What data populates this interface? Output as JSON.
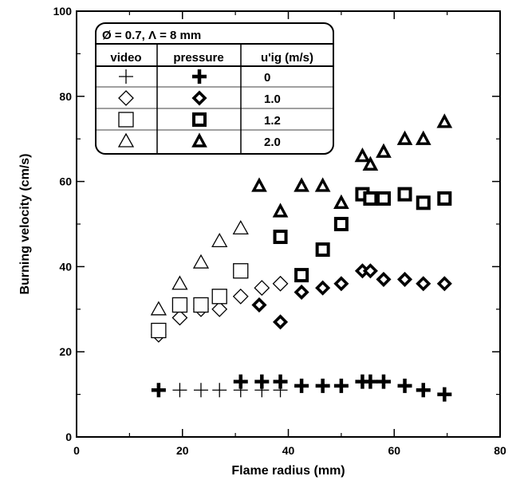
{
  "chart_data": {
    "type": "scatter",
    "xlabel": "Flame radius (mm)",
    "ylabel": "Burning velocity (cm/s)",
    "xlim": [
      0,
      80
    ],
    "ylim": [
      0,
      100
    ],
    "xticks": [
      "0",
      "20",
      "40",
      "60",
      "80"
    ],
    "yticks": [
      "0",
      "20",
      "40",
      "60",
      "80",
      "100"
    ],
    "grid": false,
    "legend": {
      "placement": "top-left",
      "title": "Ø = 0.7, Λ = 8 mm",
      "headers": [
        "video",
        "pressure",
        "u'ig (m/s)"
      ],
      "rows": [
        "0",
        "1.0",
        "1.2",
        "2.0"
      ]
    },
    "series": [
      {
        "group": "video",
        "marker": "plus-thin",
        "u_ig": "0",
        "points": [
          [
            19.5,
            11
          ],
          [
            23.5,
            11
          ],
          [
            27,
            11
          ],
          [
            31,
            11
          ],
          [
            35,
            11
          ],
          [
            38.5,
            11
          ]
        ]
      },
      {
        "group": "pressure",
        "marker": "plus-bold",
        "u_ig": "0",
        "points": [
          [
            15.5,
            11
          ],
          [
            31,
            13
          ],
          [
            35,
            13
          ],
          [
            38.5,
            13
          ],
          [
            42.5,
            12
          ],
          [
            46.5,
            12
          ],
          [
            50,
            12
          ],
          [
            54,
            13
          ],
          [
            55.5,
            13
          ],
          [
            58,
            13
          ],
          [
            62,
            12
          ],
          [
            65.5,
            11
          ],
          [
            69.5,
            10
          ]
        ]
      },
      {
        "group": "video",
        "marker": "diamond-thin",
        "u_ig": "1.0",
        "points": [
          [
            15.5,
            24
          ],
          [
            19.5,
            28
          ],
          [
            23.5,
            30
          ],
          [
            27,
            30
          ],
          [
            31,
            33
          ],
          [
            35,
            35
          ],
          [
            38.5,
            36
          ]
        ]
      },
      {
        "group": "pressure",
        "marker": "diamond-bold",
        "u_ig": "1.0",
        "points": [
          [
            34.5,
            31
          ],
          [
            38.5,
            27
          ],
          [
            42.5,
            34
          ],
          [
            46.5,
            35
          ],
          [
            50,
            36
          ],
          [
            54,
            39
          ],
          [
            55.5,
            39
          ],
          [
            58,
            37
          ],
          [
            62,
            37
          ],
          [
            65.5,
            36
          ],
          [
            69.5,
            36
          ]
        ]
      },
      {
        "group": "video",
        "marker": "square-thin",
        "u_ig": "1.2",
        "points": [
          [
            15.5,
            25
          ],
          [
            19.5,
            31
          ],
          [
            23.5,
            31
          ],
          [
            27,
            33
          ],
          [
            31,
            39
          ]
        ]
      },
      {
        "group": "pressure",
        "marker": "square-bold",
        "u_ig": "1.2",
        "points": [
          [
            38.5,
            47
          ],
          [
            42.5,
            38
          ],
          [
            46.5,
            44
          ],
          [
            50,
            50
          ],
          [
            54,
            57
          ],
          [
            55.5,
            56
          ],
          [
            58,
            56
          ],
          [
            62,
            57
          ],
          [
            65.5,
            55
          ],
          [
            69.5,
            56
          ]
        ]
      },
      {
        "group": "video",
        "marker": "triangle-thin",
        "u_ig": "2.0",
        "points": [
          [
            15.5,
            30
          ],
          [
            19.5,
            36
          ],
          [
            23.5,
            41
          ],
          [
            27,
            46
          ],
          [
            31,
            49
          ]
        ]
      },
      {
        "group": "pressure",
        "marker": "triangle-bold",
        "u_ig": "2.0",
        "points": [
          [
            34.5,
            59
          ],
          [
            38.5,
            53
          ],
          [
            42.5,
            59
          ],
          [
            46.5,
            59
          ],
          [
            50,
            55
          ],
          [
            54,
            66
          ],
          [
            55.5,
            64
          ],
          [
            58,
            67
          ],
          [
            62,
            70
          ],
          [
            65.5,
            70
          ],
          [
            69.5,
            74
          ]
        ]
      }
    ]
  }
}
